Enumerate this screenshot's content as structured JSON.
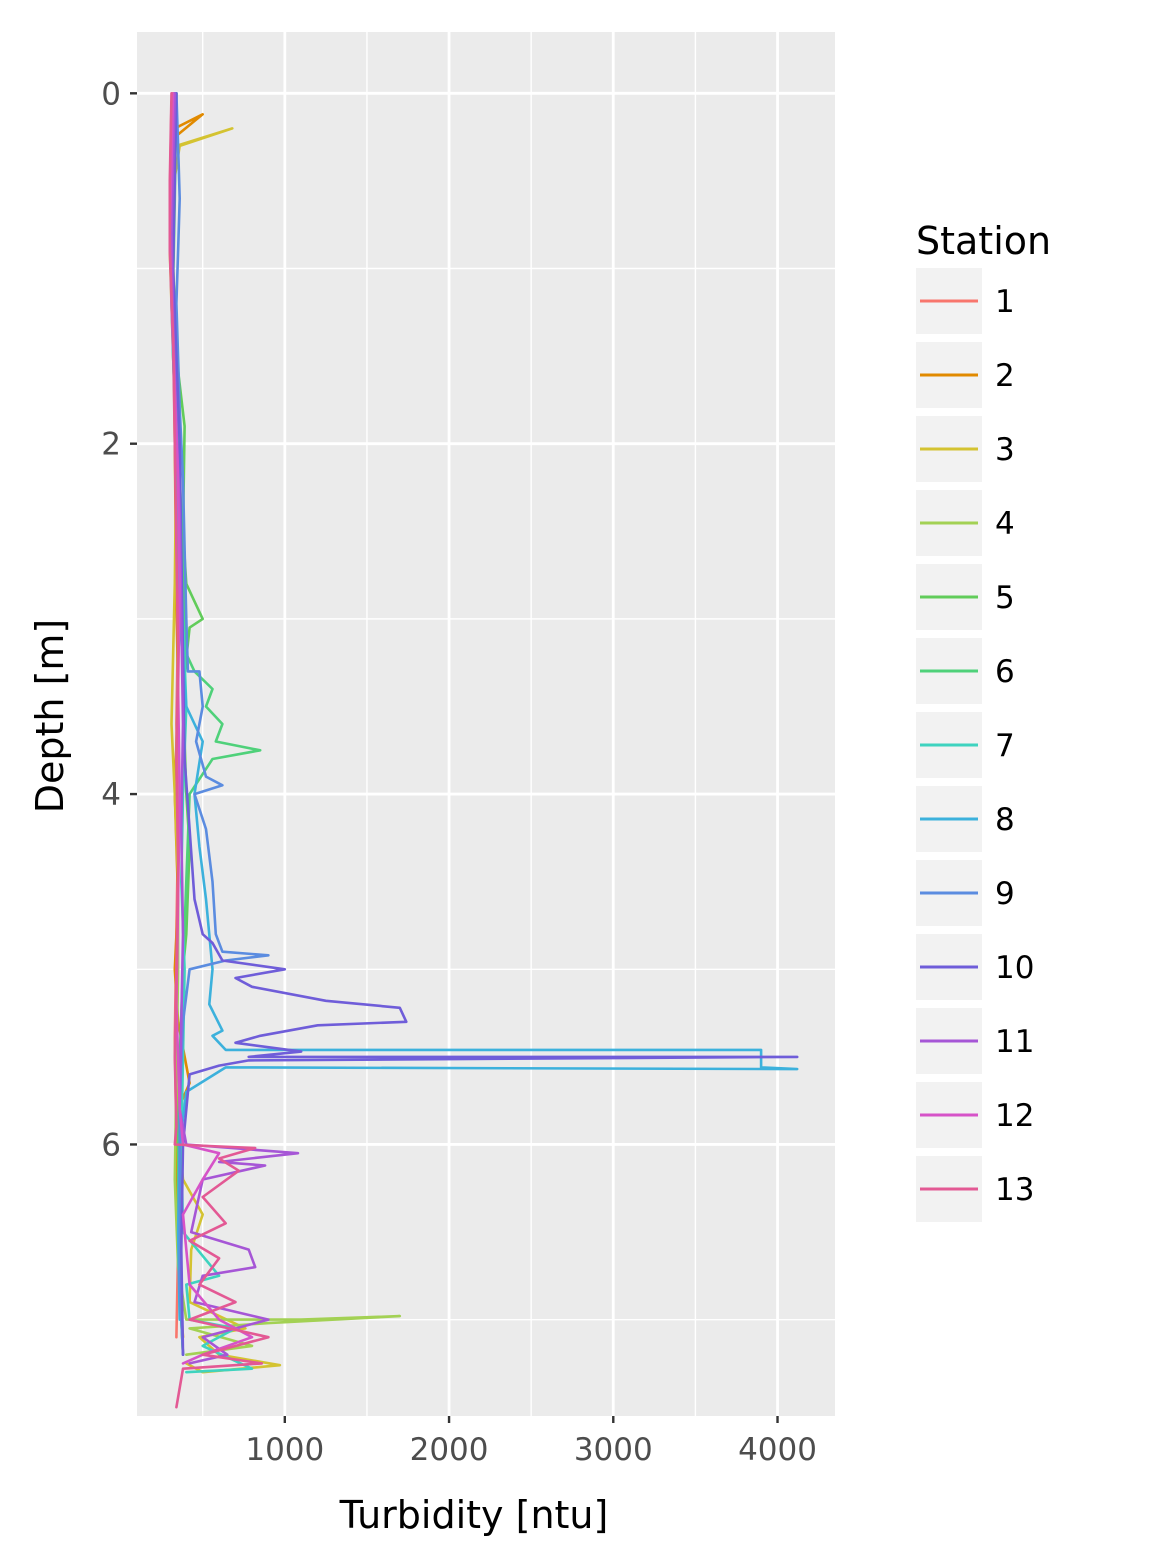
{
  "chart_data": {
    "type": "line",
    "title": "",
    "xlabel": "Turbidity [ntu]",
    "ylabel": "Depth [m]",
    "xlim": [
      100,
      4350
    ],
    "ylim": [
      7.55,
      -0.35
    ],
    "y_reversed": true,
    "x_ticks": [
      1000,
      2000,
      3000,
      4000
    ],
    "x_tick_labels": [
      "1000",
      "2000",
      "3000",
      "4000"
    ],
    "y_ticks": [
      0,
      2,
      4,
      6
    ],
    "y_tick_labels": [
      "0",
      "2",
      "4",
      "6"
    ],
    "grid": true,
    "panel_background": "#ebebeb",
    "legend": {
      "title": "Station",
      "position": "right"
    },
    "series": [
      {
        "name": "1",
        "color": "#F8766D",
        "points": [
          [
            310,
            0.05
          ],
          [
            300,
            0.6
          ],
          [
            320,
            1.2
          ],
          [
            330,
            1.8
          ],
          [
            340,
            2.4
          ],
          [
            350,
            3.0
          ],
          [
            340,
            3.6
          ],
          [
            350,
            4.2
          ],
          [
            340,
            4.8
          ],
          [
            330,
            5.4
          ],
          [
            340,
            6.0
          ],
          [
            350,
            6.6
          ],
          [
            340,
            7.1
          ]
        ]
      },
      {
        "name": "2",
        "color": "#E18A00",
        "points": [
          [
            320,
            0.0
          ],
          [
            330,
            0.2
          ],
          [
            500,
            0.12
          ],
          [
            330,
            0.25
          ],
          [
            300,
            0.6
          ],
          [
            320,
            1.2
          ],
          [
            330,
            2.0
          ],
          [
            340,
            2.9
          ],
          [
            350,
            3.4
          ],
          [
            330,
            4.0
          ],
          [
            350,
            4.6
          ],
          [
            330,
            5.0
          ],
          [
            350,
            5.3
          ],
          [
            420,
            5.65
          ],
          [
            350,
            5.8
          ],
          [
            340,
            6.3
          ],
          [
            360,
            6.8
          ],
          [
            380,
            7.1
          ]
        ]
      },
      {
        "name": "3",
        "color": "#D4C331",
        "points": [
          [
            320,
            0.0
          ],
          [
            340,
            0.3
          ],
          [
            680,
            0.2
          ],
          [
            360,
            0.3
          ],
          [
            310,
            0.6
          ],
          [
            300,
            0.9
          ],
          [
            320,
            1.5
          ],
          [
            340,
            2.0
          ],
          [
            330,
            2.8
          ],
          [
            310,
            3.6
          ],
          [
            330,
            4.0
          ],
          [
            350,
            4.5
          ],
          [
            340,
            5.0
          ],
          [
            330,
            5.5
          ],
          [
            360,
            6.0
          ],
          [
            380,
            6.2
          ],
          [
            500,
            6.4
          ],
          [
            430,
            6.6
          ],
          [
            420,
            6.9
          ],
          [
            760,
            7.05
          ],
          [
            480,
            7.1
          ],
          [
            600,
            7.2
          ],
          [
            970,
            7.26
          ],
          [
            500,
            7.3
          ],
          [
            400,
            7.25
          ]
        ]
      },
      {
        "name": "4",
        "color": "#A3D154",
        "points": [
          [
            330,
            0.0
          ],
          [
            320,
            0.4
          ],
          [
            310,
            0.8
          ],
          [
            330,
            1.2
          ],
          [
            330,
            1.8
          ],
          [
            340,
            2.4
          ],
          [
            350,
            3.2
          ],
          [
            340,
            3.8
          ],
          [
            350,
            4.3
          ],
          [
            350,
            5.0
          ],
          [
            340,
            5.6
          ],
          [
            330,
            6.2
          ],
          [
            350,
            6.7
          ],
          [
            400,
            7.0
          ],
          [
            1100,
            7.0
          ],
          [
            1700,
            6.98
          ],
          [
            900,
            7.02
          ],
          [
            420,
            7.05
          ],
          [
            800,
            7.15
          ],
          [
            400,
            7.2
          ]
        ]
      },
      {
        "name": "5",
        "color": "#61CC5A",
        "points": [
          [
            340,
            0.0
          ],
          [
            330,
            0.5
          ],
          [
            320,
            1.0
          ],
          [
            340,
            1.5
          ],
          [
            390,
            1.9
          ],
          [
            380,
            2.5
          ],
          [
            400,
            2.8
          ],
          [
            450,
            2.9
          ],
          [
            500,
            3.0
          ],
          [
            420,
            3.05
          ],
          [
            380,
            3.4
          ],
          [
            400,
            4.0
          ],
          [
            420,
            4.3
          ],
          [
            400,
            4.8
          ],
          [
            380,
            5.0
          ],
          [
            360,
            5.5
          ],
          [
            350,
            6.0
          ],
          [
            360,
            6.5
          ],
          [
            370,
            7.0
          ],
          [
            380,
            7.2
          ]
        ]
      },
      {
        "name": "6",
        "color": "#4FD17A",
        "points": [
          [
            340,
            0.0
          ],
          [
            330,
            0.6
          ],
          [
            320,
            1.1
          ],
          [
            340,
            1.7
          ],
          [
            360,
            2.2
          ],
          [
            380,
            2.6
          ],
          [
            400,
            3.2
          ],
          [
            450,
            3.3
          ],
          [
            560,
            3.4
          ],
          [
            520,
            3.5
          ],
          [
            620,
            3.6
          ],
          [
            580,
            3.7
          ],
          [
            850,
            3.75
          ],
          [
            560,
            3.8
          ],
          [
            420,
            4.0
          ],
          [
            400,
            4.5
          ],
          [
            380,
            5.0
          ],
          [
            360,
            5.6
          ],
          [
            350,
            6.2
          ],
          [
            360,
            6.8
          ],
          [
            380,
            7.2
          ]
        ]
      },
      {
        "name": "7",
        "color": "#3ED3BF",
        "points": [
          [
            330,
            0.0
          ],
          [
            320,
            0.5
          ],
          [
            310,
            1.0
          ],
          [
            320,
            1.5
          ],
          [
            340,
            2.0
          ],
          [
            360,
            2.4
          ],
          [
            380,
            3.0
          ],
          [
            400,
            3.5
          ],
          [
            380,
            4.0
          ],
          [
            370,
            4.5
          ],
          [
            390,
            5.0
          ],
          [
            380,
            5.5
          ],
          [
            370,
            6.0
          ],
          [
            380,
            6.5
          ],
          [
            600,
            6.75
          ],
          [
            400,
            6.8
          ],
          [
            420,
            7.0
          ],
          [
            700,
            7.05
          ],
          [
            500,
            7.15
          ],
          [
            800,
            7.28
          ],
          [
            400,
            7.3
          ]
        ]
      },
      {
        "name": "8",
        "color": "#3CB1DC",
        "points": [
          [
            330,
            0.0
          ],
          [
            320,
            0.6
          ],
          [
            310,
            1.2
          ],
          [
            330,
            1.8
          ],
          [
            350,
            2.4
          ],
          [
            360,
            3.0
          ],
          [
            400,
            3.5
          ],
          [
            500,
            3.7
          ],
          [
            450,
            4.0
          ],
          [
            480,
            4.3
          ],
          [
            520,
            4.6
          ],
          [
            550,
            4.9
          ],
          [
            560,
            5.0
          ],
          [
            540,
            5.2
          ],
          [
            620,
            5.35
          ],
          [
            560,
            5.38
          ],
          [
            640,
            5.46
          ],
          [
            3900,
            5.46
          ],
          [
            3900,
            5.56
          ],
          [
            4120,
            5.57
          ],
          [
            640,
            5.56
          ],
          [
            400,
            5.7
          ],
          [
            360,
            6.0
          ],
          [
            350,
            6.5
          ],
          [
            360,
            7.0
          ]
        ]
      },
      {
        "name": "9",
        "color": "#5B8CE0",
        "points": [
          [
            340,
            0.0
          ],
          [
            350,
            0.3
          ],
          [
            360,
            0.6
          ],
          [
            350,
            0.9
          ],
          [
            340,
            1.2
          ],
          [
            360,
            1.8
          ],
          [
            380,
            2.2
          ],
          [
            390,
            2.6
          ],
          [
            400,
            3.0
          ],
          [
            410,
            3.3
          ],
          [
            480,
            3.3
          ],
          [
            500,
            3.5
          ],
          [
            460,
            3.7
          ],
          [
            520,
            3.9
          ],
          [
            620,
            3.95
          ],
          [
            450,
            4.0
          ],
          [
            520,
            4.2
          ],
          [
            560,
            4.5
          ],
          [
            580,
            4.8
          ],
          [
            620,
            4.9
          ],
          [
            900,
            4.92
          ],
          [
            640,
            4.95
          ],
          [
            420,
            5.0
          ],
          [
            380,
            5.3
          ],
          [
            360,
            5.8
          ],
          [
            360,
            6.3
          ],
          [
            360,
            6.8
          ],
          [
            380,
            7.2
          ]
        ]
      },
      {
        "name": "10",
        "color": "#6F5DD9",
        "points": [
          [
            340,
            0.0
          ],
          [
            330,
            0.5
          ],
          [
            320,
            1.0
          ],
          [
            340,
            1.5
          ],
          [
            360,
            2.0
          ],
          [
            370,
            2.6
          ],
          [
            380,
            3.2
          ],
          [
            390,
            3.8
          ],
          [
            420,
            4.2
          ],
          [
            450,
            4.6
          ],
          [
            500,
            4.8
          ],
          [
            560,
            4.85
          ],
          [
            620,
            4.95
          ],
          [
            1000,
            5.0
          ],
          [
            700,
            5.05
          ],
          [
            800,
            5.1
          ],
          [
            1250,
            5.18
          ],
          [
            1700,
            5.22
          ],
          [
            1740,
            5.3
          ],
          [
            1200,
            5.32
          ],
          [
            850,
            5.38
          ],
          [
            700,
            5.42
          ],
          [
            1100,
            5.47
          ],
          [
            780,
            5.5
          ],
          [
            4120,
            5.5
          ],
          [
            780,
            5.52
          ],
          [
            600,
            5.55
          ],
          [
            420,
            5.6
          ],
          [
            380,
            6.0
          ],
          [
            370,
            6.6
          ],
          [
            380,
            7.2
          ]
        ]
      },
      {
        "name": "11",
        "color": "#A656D6",
        "points": [
          [
            330,
            0.0
          ],
          [
            320,
            0.4
          ],
          [
            310,
            0.8
          ],
          [
            320,
            1.3
          ],
          [
            340,
            1.9
          ],
          [
            360,
            2.4
          ],
          [
            370,
            3.0
          ],
          [
            380,
            3.6
          ],
          [
            370,
            4.2
          ],
          [
            380,
            4.8
          ],
          [
            370,
            5.3
          ],
          [
            360,
            5.8
          ],
          [
            400,
            6.0
          ],
          [
            1080,
            6.05
          ],
          [
            600,
            6.1
          ],
          [
            880,
            6.12
          ],
          [
            500,
            6.2
          ],
          [
            430,
            6.5
          ],
          [
            780,
            6.6
          ],
          [
            820,
            6.7
          ],
          [
            500,
            6.75
          ],
          [
            450,
            6.9
          ],
          [
            900,
            7.0
          ],
          [
            500,
            7.1
          ],
          [
            650,
            7.2
          ],
          [
            420,
            7.25
          ]
        ]
      },
      {
        "name": "12",
        "color": "#D653C8",
        "points": [
          [
            320,
            0.0
          ],
          [
            310,
            0.4
          ],
          [
            300,
            0.8
          ],
          [
            310,
            1.2
          ],
          [
            330,
            1.7
          ],
          [
            350,
            2.2
          ],
          [
            360,
            2.8
          ],
          [
            350,
            3.4
          ],
          [
            360,
            4.0
          ],
          [
            350,
            4.6
          ],
          [
            340,
            5.2
          ],
          [
            360,
            5.8
          ],
          [
            380,
            6.0
          ],
          [
            600,
            6.05
          ],
          [
            500,
            6.2
          ],
          [
            380,
            6.4
          ],
          [
            420,
            6.8
          ],
          [
            600,
            7.0
          ],
          [
            800,
            7.1
          ],
          [
            500,
            7.2
          ],
          [
            380,
            7.25
          ]
        ]
      },
      {
        "name": "13",
        "color": "#E35994",
        "points": [
          [
            310,
            0.0
          ],
          [
            300,
            0.5
          ],
          [
            300,
            0.9
          ],
          [
            320,
            1.4
          ],
          [
            330,
            2.0
          ],
          [
            340,
            2.6
          ],
          [
            350,
            3.2
          ],
          [
            340,
            3.8
          ],
          [
            350,
            4.4
          ],
          [
            340,
            5.0
          ],
          [
            330,
            5.5
          ],
          [
            340,
            5.9
          ],
          [
            330,
            6.0
          ],
          [
            820,
            6.02
          ],
          [
            600,
            6.08
          ],
          [
            720,
            6.15
          ],
          [
            500,
            6.3
          ],
          [
            640,
            6.45
          ],
          [
            420,
            6.55
          ],
          [
            600,
            6.65
          ],
          [
            480,
            6.8
          ],
          [
            700,
            6.9
          ],
          [
            420,
            7.0
          ],
          [
            900,
            7.1
          ],
          [
            500,
            7.2
          ],
          [
            860,
            7.25
          ],
          [
            380,
            7.28
          ],
          [
            340,
            7.5
          ]
        ]
      }
    ]
  }
}
